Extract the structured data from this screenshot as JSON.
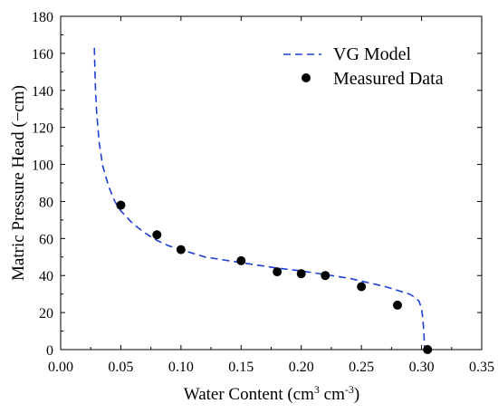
{
  "chart_data": {
    "type": "scatter",
    "title": "",
    "xlabel": "Water Content (cm",
    "xlabel_parts": [
      "Water Content (cm",
      "3",
      " cm",
      "-3",
      ")"
    ],
    "ylabel": "Matric Pressure Head (−cm)",
    "xlim": [
      0.0,
      0.35
    ],
    "ylim": [
      0,
      180
    ],
    "xticks": [
      0.0,
      0.05,
      0.1,
      0.15,
      0.2,
      0.25,
      0.3,
      0.35
    ],
    "xtick_labels": [
      "0.00",
      "0.05",
      "0.10",
      "0.15",
      "0.20",
      "0.25",
      "0.30",
      "0.35"
    ],
    "yticks": [
      0,
      20,
      40,
      60,
      80,
      100,
      120,
      140,
      160,
      180
    ],
    "ytick_labels": [
      "0",
      "20",
      "40",
      "60",
      "80",
      "100",
      "120",
      "140",
      "160",
      "180"
    ],
    "grid": false,
    "legend_position": "top-right",
    "series": [
      {
        "name": "VG Model",
        "kind": "line",
        "style": "dashed",
        "color": "#1f3fd6",
        "x": [
          0.028,
          0.0285,
          0.029,
          0.03,
          0.032,
          0.035,
          0.04,
          0.045,
          0.05,
          0.06,
          0.07,
          0.08,
          0.09,
          0.1,
          0.12,
          0.14,
          0.16,
          0.18,
          0.2,
          0.22,
          0.24,
          0.26,
          0.27,
          0.28,
          0.29,
          0.295,
          0.298,
          0.3,
          0.301,
          0.302,
          0.3025
        ],
        "y": [
          163,
          150,
          140,
          127,
          112,
          99,
          88,
          80,
          75,
          68,
          63,
          59,
          56,
          54,
          50,
          48,
          46,
          44,
          42.5,
          40.5,
          38.5,
          35.5,
          34,
          32,
          30,
          28,
          26,
          22,
          17,
          9,
          0
        ]
      },
      {
        "name": "Measured Data",
        "kind": "scatter",
        "color": "#000000",
        "x": [
          0.05,
          0.08,
          0.1,
          0.15,
          0.18,
          0.2,
          0.22,
          0.25,
          0.28,
          0.305
        ],
        "y": [
          78,
          62,
          54,
          48,
          42,
          41,
          40,
          34,
          24,
          0
        ]
      }
    ]
  }
}
